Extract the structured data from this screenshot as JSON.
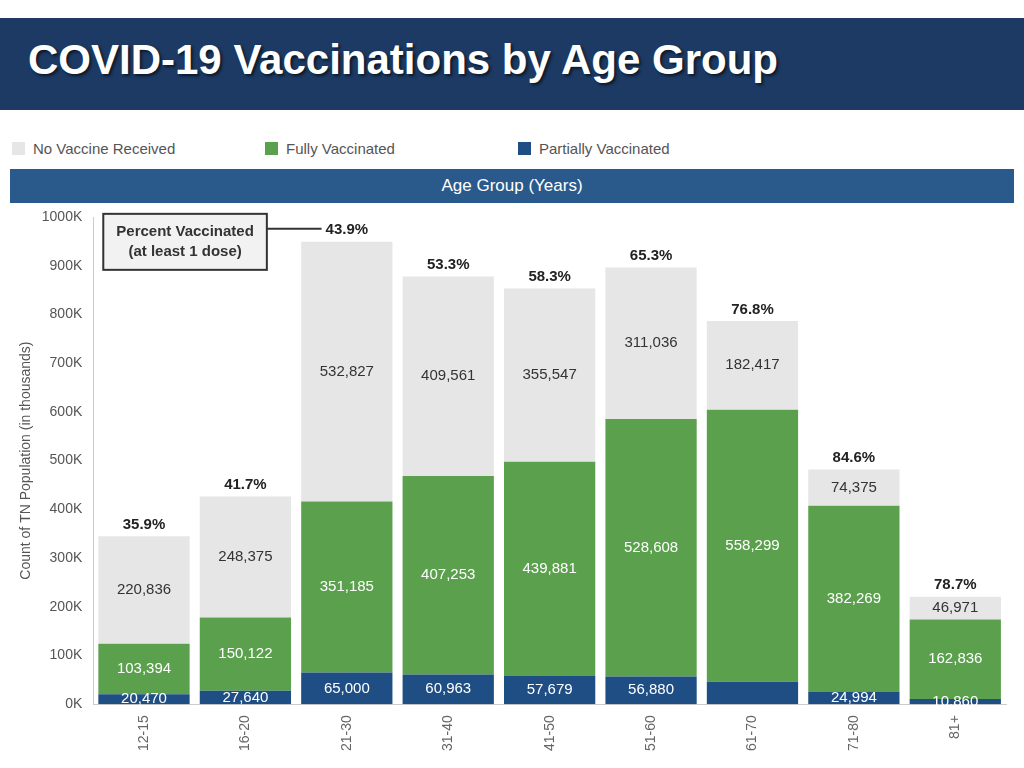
{
  "chart_data": {
    "type": "bar",
    "title": "COVID-19 Vaccinations by Age Group",
    "x_label": "Age Group (Years)",
    "y_label": "Count of TN Population (in thousands)",
    "categories": [
      "12-15",
      "16-20",
      "21-30",
      "31-40",
      "41-50",
      "51-60",
      "61-70",
      "71-80",
      "81+"
    ],
    "series": [
      {
        "name": "No Vaccine Received",
        "color": "#e6e6e6",
        "values": [
          220836,
          248375,
          532827,
          409561,
          355547,
          311036,
          182417,
          74375,
          46971
        ],
        "value_labels": [
          "220,836",
          "248,375",
          "532,827",
          "409,561",
          "355,547",
          "311,036",
          "182,417",
          "74,375",
          "46,971"
        ]
      },
      {
        "name": "Fully Vaccinated",
        "color": "#5ba14d",
        "values": [
          103394,
          150122,
          351185,
          407253,
          439881,
          528608,
          558299,
          382269,
          162836
        ],
        "value_labels": [
          "103,394",
          "150,122",
          "351,185",
          "407,253",
          "439,881",
          "528,608",
          "558,299",
          "382,269",
          "162,836"
        ]
      },
      {
        "name": "Partially Vaccinated",
        "color": "#1f4e84",
        "values": [
          20470,
          27640,
          65000,
          60963,
          57679,
          56880,
          46000,
          24994,
          10860
        ],
        "value_labels": [
          "20,470",
          "27,640",
          "65,000",
          "60,963",
          "57,679",
          "56,880",
          null,
          "24,994",
          "10,860"
        ]
      }
    ],
    "stacked": true,
    "data_labels": true,
    "legend": "top left",
    "grid": false,
    "ylim": [
      0,
      1000000
    ],
    "yticks": [
      {
        "value": 0,
        "label": "0K"
      },
      {
        "value": 100000,
        "label": "100K"
      },
      {
        "value": 200000,
        "label": "200K"
      },
      {
        "value": 300000,
        "label": "300K"
      },
      {
        "value": 400000,
        "label": "400K"
      },
      {
        "value": 500000,
        "label": "500K"
      },
      {
        "value": 600000,
        "label": "600K"
      },
      {
        "value": 700000,
        "label": "700K"
      },
      {
        "value": 800000,
        "label": "800K"
      },
      {
        "value": 900000,
        "label": "900K"
      },
      {
        "value": 1000000,
        "label": "1000K"
      }
    ],
    "percent_vaccinated": {
      "title": "Percent Vaccinated (at least 1 dose)",
      "values": [
        35.9,
        41.7,
        43.9,
        53.3,
        58.3,
        65.3,
        76.8,
        84.6,
        78.7
      ],
      "value_labels": [
        "35.9%",
        "41.7%",
        "43.9%",
        "53.3%",
        "58.3%",
        "65.3%",
        "76.8%",
        "84.6%",
        "78.7%"
      ]
    }
  }
}
